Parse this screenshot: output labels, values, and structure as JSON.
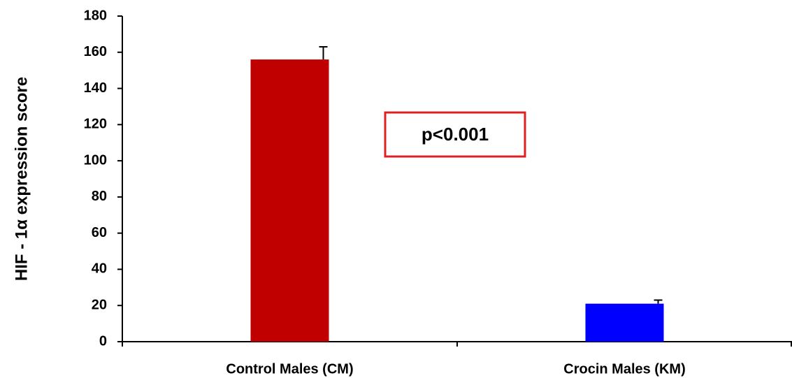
{
  "chart_data": {
    "type": "bar",
    "ylabel": "HIF - 1α expression score",
    "categories": [
      "Control Males (CM)",
      "Crocin Males (KM)"
    ],
    "values": [
      156,
      21
    ],
    "errors": [
      7,
      2
    ],
    "colors": [
      "#c00000",
      "#0000ff"
    ],
    "annotation": "p<0.001",
    "annotation_color": "#e02020",
    "ylim": [
      0,
      180
    ],
    "yticks": [
      0,
      20,
      40,
      60,
      80,
      100,
      120,
      140,
      160,
      180
    ],
    "grid": false
  }
}
